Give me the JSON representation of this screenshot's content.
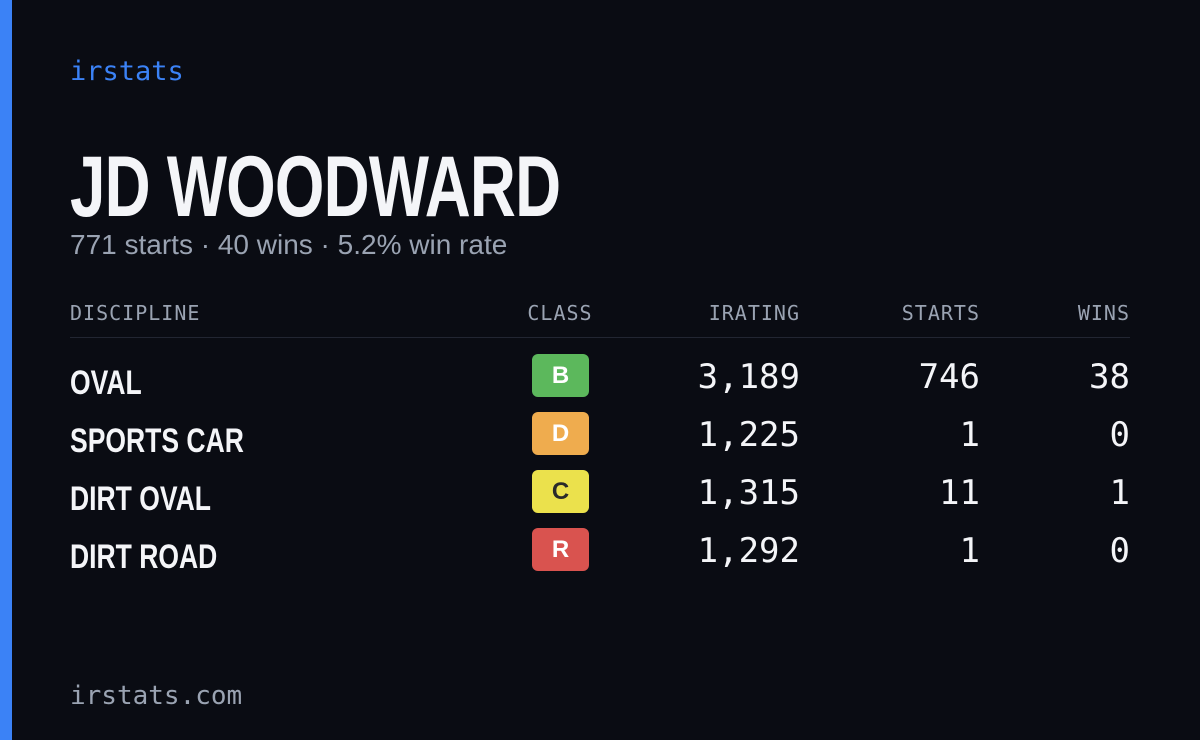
{
  "brand": "irstats",
  "player": {
    "name": "JD WOODWARD",
    "summary": "771 starts · 40 wins · 5.2% win rate"
  },
  "table": {
    "headers": [
      "DISCIPLINE",
      "CLASS",
      "IRATING",
      "STARTS",
      "WINS"
    ],
    "rows": [
      {
        "discipline": "OVAL",
        "class": "B",
        "class_color": "#5cb85c",
        "irating": "3,189",
        "starts": "746",
        "wins": "38"
      },
      {
        "discipline": "SPORTS CAR",
        "class": "D",
        "class_color": "#efac4e",
        "irating": "1,225",
        "starts": "1",
        "wins": "0"
      },
      {
        "discipline": "DIRT OVAL",
        "class": "C",
        "class_color": "#ebe14c",
        "irating": "1,315",
        "starts": "11",
        "wins": "1"
      },
      {
        "discipline": "DIRT ROAD",
        "class": "R",
        "class_color": "#d9534f",
        "irating": "1,292",
        "starts": "1",
        "wins": "0"
      }
    ]
  },
  "footer": "irstats.com"
}
